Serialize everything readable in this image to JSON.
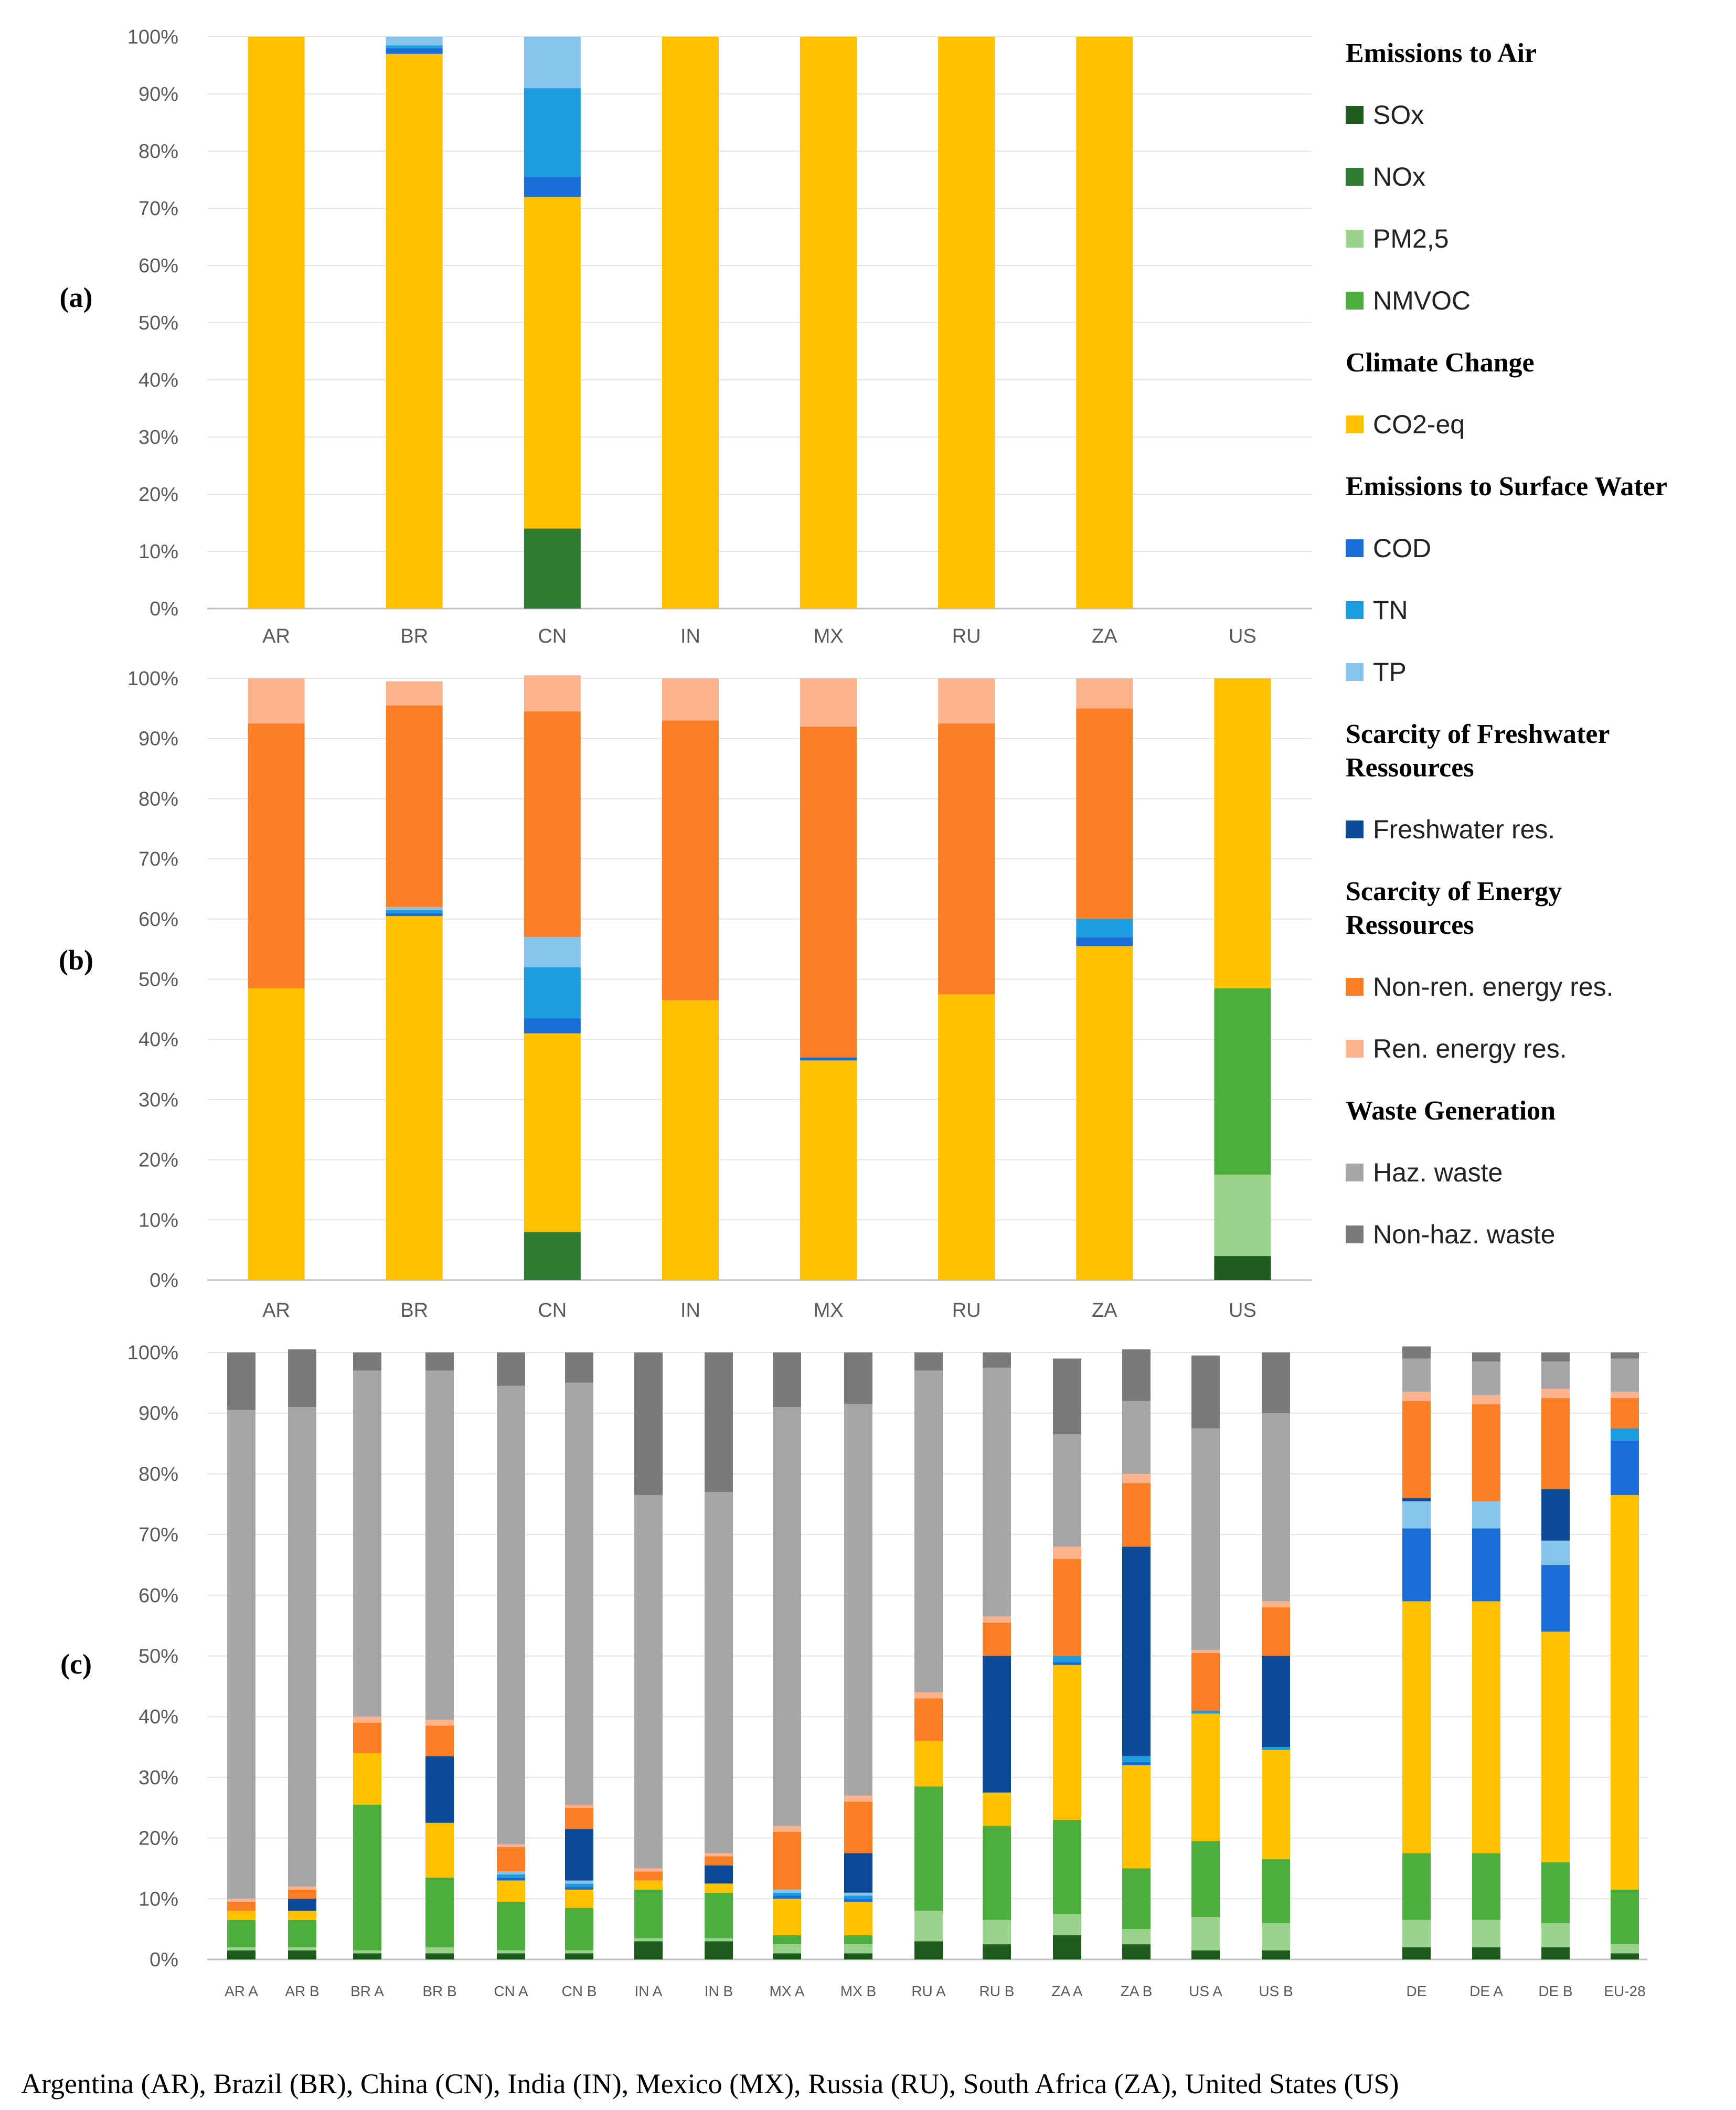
{
  "chart_data": [
    {
      "panel": "(a)",
      "type": "bar",
      "stacked": true,
      "ylim": [
        0,
        100
      ],
      "yticks": [
        "0%",
        "10%",
        "20%",
        "30%",
        "40%",
        "50%",
        "60%",
        "70%",
        "80%",
        "90%",
        "100%"
      ],
      "categories": [
        "AR",
        "BR",
        "CN",
        "IN",
        "MX",
        "RU",
        "ZA",
        "US"
      ],
      "series": [
        {
          "name": "SOx",
          "values": [
            0,
            0,
            0,
            0,
            0,
            0,
            0,
            0
          ]
        },
        {
          "name": "NOx",
          "values": [
            0,
            0,
            14,
            0,
            0,
            0,
            0,
            0
          ]
        },
        {
          "name": "PM2,5",
          "values": [
            0,
            0,
            0,
            0,
            0,
            0,
            0,
            0
          ]
        },
        {
          "name": "NMVOC",
          "values": [
            0,
            0,
            0,
            0,
            0,
            0,
            0,
            0
          ]
        },
        {
          "name": "CO2-eq",
          "values": [
            100,
            97,
            58,
            100,
            100,
            100,
            100,
            0
          ]
        },
        {
          "name": "COD",
          "values": [
            0,
            1,
            3.5,
            0,
            0,
            0,
            0,
            0
          ]
        },
        {
          "name": "TN",
          "values": [
            0,
            0.5,
            15.5,
            0,
            0,
            0,
            0,
            0
          ]
        },
        {
          "name": "TP",
          "values": [
            0,
            1.5,
            9,
            0,
            0,
            0,
            0,
            0
          ]
        }
      ]
    },
    {
      "panel": "(b)",
      "type": "bar",
      "stacked": true,
      "ylim": [
        0,
        100
      ],
      "yticks": [
        "0%",
        "10%",
        "20%",
        "30%",
        "40%",
        "50%",
        "60%",
        "70%",
        "80%",
        "90%",
        "100%"
      ],
      "categories": [
        "AR",
        "BR",
        "CN",
        "IN",
        "MX",
        "RU",
        "ZA",
        "US"
      ],
      "series": [
        {
          "name": "SOx",
          "values": [
            0,
            0,
            0,
            0,
            0,
            0,
            0,
            4
          ]
        },
        {
          "name": "NOx",
          "values": [
            0,
            0,
            8,
            0,
            0,
            0,
            0,
            0
          ]
        },
        {
          "name": "PM2,5",
          "values": [
            0,
            0,
            0,
            0,
            0,
            0,
            0,
            13.5
          ]
        },
        {
          "name": "NMVOC",
          "values": [
            0,
            0,
            0,
            0,
            0,
            0,
            0,
            31
          ]
        },
        {
          "name": "CO2-eq",
          "values": [
            48.5,
            60.5,
            33,
            46.5,
            36.5,
            47.5,
            55.5,
            51.5
          ]
        },
        {
          "name": "COD",
          "values": [
            0,
            0.5,
            2.5,
            0,
            0.5,
            0,
            1.5,
            0
          ]
        },
        {
          "name": "TN",
          "values": [
            0,
            0.5,
            8.5,
            0,
            0,
            0,
            3,
            0
          ]
        },
        {
          "name": "TP",
          "values": [
            0,
            0.5,
            5,
            0,
            0,
            0,
            0,
            0
          ]
        },
        {
          "name": "Non-ren. energy res.",
          "values": [
            44,
            33.5,
            37.5,
            46.5,
            55,
            45,
            35,
            0
          ]
        },
        {
          "name": "Ren. energy res.",
          "values": [
            7.5,
            4,
            6,
            7,
            8,
            7.5,
            5,
            0
          ]
        }
      ]
    },
    {
      "panel": "(c)",
      "type": "bar",
      "stacked": true,
      "ylim": [
        0,
        100
      ],
      "yticks": [
        "0%",
        "10%",
        "20%",
        "30%",
        "40%",
        "50%",
        "60%",
        "70%",
        "80%",
        "90%",
        "100%"
      ],
      "categories": [
        "AR A",
        "AR B",
        "BR A",
        "BR B",
        "CN A",
        "CN B",
        "IN A",
        "IN B",
        "MX A",
        "MX B",
        "RU A",
        "RU B",
        "ZA A",
        "ZA B",
        "US A",
        "US B",
        "DE",
        "DE A",
        "DE B",
        "EU-28"
      ],
      "series": [
        {
          "name": "SOx",
          "values": [
            1.5,
            1.5,
            1,
            1,
            1,
            1,
            3,
            3,
            1,
            1,
            3,
            2.5,
            4,
            2.5,
            1.5,
            1.5,
            2,
            2,
            2,
            1
          ]
        },
        {
          "name": "NOx",
          "values": [
            0,
            0,
            0,
            0,
            0,
            0,
            0,
            0,
            0,
            0,
            0,
            0,
            0,
            0,
            0,
            0,
            0,
            0,
            0,
            0
          ]
        },
        {
          "name": "PM2,5",
          "values": [
            0.5,
            0.5,
            0.5,
            1,
            0.5,
            0.5,
            0.5,
            0.5,
            1.5,
            1.5,
            5,
            4,
            3.5,
            2.5,
            5.5,
            4.5,
            4.5,
            4.5,
            4,
            1.5
          ]
        },
        {
          "name": "NMVOC",
          "values": [
            4.5,
            4.5,
            24,
            11.5,
            8,
            7,
            8,
            7.5,
            1.5,
            1.5,
            20.5,
            15.5,
            15.5,
            10,
            12.5,
            10.5,
            11,
            11,
            10,
            9
          ]
        },
        {
          "name": "CO2-eq",
          "values": [
            1.5,
            1.5,
            8.5,
            9,
            3.5,
            3,
            1.5,
            1.5,
            6,
            5.5,
            7.5,
            5.5,
            25.5,
            17,
            21,
            18,
            41.5,
            41.5,
            38,
            65
          ]
        },
        {
          "name": "COD",
          "values": [
            0,
            0,
            0,
            0,
            0.5,
            0.5,
            0,
            0,
            0.5,
            0.5,
            0,
            0,
            0.5,
            0.5,
            0,
            0,
            12,
            12,
            11,
            9
          ]
        },
        {
          "name": "TN",
          "values": [
            0,
            0,
            0,
            0,
            0.5,
            0.5,
            0,
            0,
            0.5,
            0.5,
            0,
            0,
            1,
            1,
            0.5,
            0.5,
            0,
            0,
            0,
            2
          ]
        },
        {
          "name": "TP",
          "values": [
            0,
            0,
            0,
            0,
            0.5,
            0.5,
            0,
            0,
            0.5,
            0.5,
            0,
            0,
            0,
            0,
            0,
            0,
            4.5,
            4.5,
            4,
            0
          ]
        },
        {
          "name": "Freshwater res.",
          "values": [
            0,
            2,
            0,
            11,
            0,
            8.5,
            0,
            3,
            0,
            6.5,
            0,
            22.5,
            0,
            34.5,
            0,
            15,
            0.5,
            0,
            8.5,
            0
          ]
        },
        {
          "name": "Non-ren. energy res.",
          "values": [
            1.5,
            1.5,
            5,
            5,
            4,
            3.5,
            1.5,
            1.5,
            9.5,
            8.5,
            7,
            5.5,
            16,
            10.5,
            9.5,
            8,
            16,
            16,
            15,
            5
          ]
        },
        {
          "name": "Ren. energy res.",
          "values": [
            0.5,
            0.5,
            1,
            1,
            0.5,
            0.5,
            0.5,
            0.5,
            1,
            1,
            1,
            1,
            2,
            1.5,
            0.5,
            1,
            1.5,
            1.5,
            1.5,
            1
          ]
        },
        {
          "name": "Haz. waste",
          "values": [
            80.5,
            79,
            57,
            57.5,
            75.5,
            69.5,
            61.5,
            59.5,
            69,
            64.5,
            53,
            41,
            18.5,
            12,
            36.5,
            31,
            5.5,
            5.5,
            4.5,
            5.5
          ]
        },
        {
          "name": "Non-haz. waste",
          "values": [
            9.5,
            9.5,
            3,
            3,
            5.5,
            5,
            23.5,
            23,
            9,
            8.5,
            3,
            2.5,
            12.5,
            8.5,
            12,
            10,
            2,
            1.5,
            1.5,
            1
          ]
        }
      ]
    }
  ],
  "panels": {
    "a_label": "(a)",
    "b_label": "(b)",
    "c_label": "(c)"
  },
  "legend": {
    "colors": {
      "SOx": "#1e5c1e",
      "NOx": "#2e7d32",
      "PM2,5": "#9ad48c",
      "NMVOC": "#4caf3d",
      "CO2-eq": "#ffc000",
      "COD": "#1a6ed8",
      "TN": "#1e9ce0",
      "TP": "#86c4ec",
      "Freshwater res.": "#0a4a96",
      "Non-ren. energy res.": "#fb7e24",
      "Ren. energy res.": "#fdb28c",
      "Haz. waste": "#a6a6a6",
      "Non-haz. waste": "#7a7a7a"
    },
    "groups": [
      {
        "heading": "Emissions to Air",
        "items": [
          "SOx",
          "NOx",
          "PM2,5",
          "NMVOC"
        ]
      },
      {
        "heading": "Climate Change",
        "items": [
          "CO2-eq"
        ]
      },
      {
        "heading": "Emissions to Surface Water",
        "items": [
          "COD",
          "TN",
          "TP"
        ]
      },
      {
        "heading": "Scarcity of Freshwater Ressources",
        "items": [
          "Freshwater res."
        ]
      },
      {
        "heading": "Scarcity of Energy Ressources",
        "items": [
          "Non-ren. energy res.",
          "Ren. energy res."
        ]
      },
      {
        "heading": "Waste Generation",
        "items": [
          "Haz. waste",
          "Non-haz. waste"
        ]
      }
    ]
  },
  "caption": "Argentina (AR), Brazil (BR), China (CN), India (IN), Mexico (MX), Russia (RU), South Africa (ZA), United States (US)"
}
